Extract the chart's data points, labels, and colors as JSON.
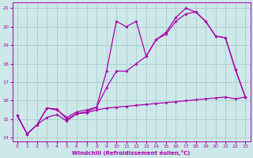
{
  "xlabel": "Windchill (Refroidissement éolien,°C)",
  "bg_color": "#cce8e8",
  "grid_color": "#aacccc",
  "line_color": "#aa00aa",
  "xlim": [
    -0.5,
    23.5
  ],
  "ylim": [
    13.8,
    21.3
  ],
  "xticks": [
    0,
    1,
    2,
    3,
    4,
    5,
    6,
    7,
    8,
    9,
    10,
    11,
    12,
    13,
    14,
    15,
    16,
    17,
    18,
    19,
    20,
    21,
    22,
    23
  ],
  "yticks": [
    14,
    15,
    16,
    17,
    18,
    19,
    20,
    21
  ],
  "curve1_x": [
    0,
    1,
    2,
    3,
    4,
    5,
    6,
    7,
    8,
    9,
    10,
    11,
    12,
    13,
    14,
    15,
    16,
    17,
    18,
    19,
    20,
    21,
    22,
    23
  ],
  "curve1_y": [
    15.2,
    14.2,
    14.7,
    15.1,
    15.25,
    14.9,
    15.3,
    15.35,
    15.5,
    15.6,
    15.65,
    15.7,
    15.75,
    15.8,
    15.85,
    15.9,
    15.95,
    16.0,
    16.05,
    16.1,
    16.15,
    16.2,
    16.1,
    16.2
  ],
  "curve2_x": [
    0,
    1,
    2,
    3,
    4,
    5,
    6,
    7,
    8,
    9,
    10,
    11,
    12,
    13,
    14,
    15,
    16,
    17,
    18,
    19,
    20,
    21,
    22,
    23
  ],
  "curve2_y": [
    15.2,
    14.2,
    14.7,
    15.6,
    15.5,
    15.1,
    15.4,
    15.5,
    15.65,
    17.6,
    20.3,
    20.0,
    20.3,
    18.4,
    19.3,
    19.7,
    20.5,
    21.0,
    20.8,
    20.3,
    19.5,
    19.4,
    17.7,
    16.2
  ],
  "curve3_x": [
    0,
    1,
    2,
    3,
    4,
    5,
    6,
    7,
    8,
    9,
    10,
    11,
    12,
    13,
    14,
    15,
    16,
    17,
    18,
    19,
    20,
    21,
    22,
    23
  ],
  "curve3_y": [
    15.2,
    14.2,
    14.7,
    15.6,
    15.55,
    15.0,
    15.3,
    15.4,
    15.65,
    16.7,
    17.6,
    17.6,
    18.0,
    18.4,
    19.3,
    19.6,
    20.3,
    20.7,
    20.8,
    20.3,
    19.5,
    19.4,
    17.7,
    16.2
  ]
}
